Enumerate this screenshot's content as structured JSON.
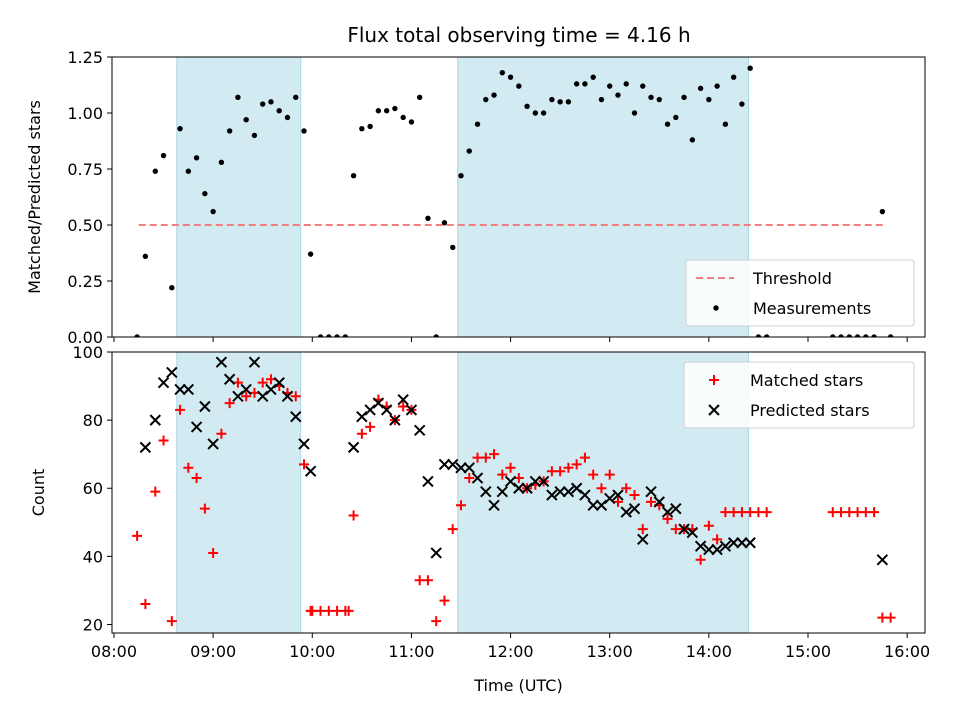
{
  "title": "Flux total observing time = 4.16 h",
  "colors": {
    "band": "#add8e6",
    "threshold": "#f08080",
    "matched": "#ff0000",
    "predicted": "#000000",
    "measurement": "#000000"
  },
  "chart_data": [
    {
      "type": "scatter",
      "ylabel": "Matched/Predicted stars",
      "ylim": [
        0,
        1.25
      ],
      "yticks": [
        "0.00",
        "0.25",
        "0.50",
        "0.75",
        "1.00",
        "1.25"
      ],
      "xlim_hours": [
        7.98,
        16.18
      ],
      "observing_windows": [
        [
          "08:38",
          "09:53"
        ],
        [
          "11:28",
          "14:24"
        ]
      ],
      "threshold": {
        "value": 0.5,
        "from": "08:15",
        "to": "15:47"
      },
      "legend": {
        "position": "lower-right",
        "entries": [
          "Threshold",
          "Measurements"
        ]
      },
      "series": [
        {
          "name": "Measurements",
          "x": [
            "08:14",
            "08:19",
            "08:25",
            "08:30",
            "08:35",
            "08:40",
            "08:45",
            "08:50",
            "08:55",
            "09:00",
            "09:05",
            "09:10",
            "09:15",
            "09:20",
            "09:25",
            "09:30",
            "09:35",
            "09:40",
            "09:45",
            "09:50",
            "09:55",
            "09:59",
            "10:05",
            "10:10",
            "10:15",
            "10:20",
            "10:25",
            "10:30",
            "10:35",
            "10:40",
            "10:45",
            "10:50",
            "10:55",
            "11:00",
            "11:05",
            "11:10",
            "11:15",
            "11:20",
            "11:25",
            "11:30",
            "11:35",
            "11:40",
            "11:45",
            "11:50",
            "11:55",
            "12:00",
            "12:05",
            "12:10",
            "12:15",
            "12:20",
            "12:25",
            "12:30",
            "12:35",
            "12:40",
            "12:45",
            "12:50",
            "12:55",
            "13:00",
            "13:05",
            "13:10",
            "13:15",
            "13:20",
            "13:25",
            "13:30",
            "13:35",
            "13:40",
            "13:45",
            "13:50",
            "13:55",
            "14:00",
            "14:05",
            "14:10",
            "14:15",
            "14:20",
            "14:25",
            "14:30",
            "14:35",
            "15:15",
            "15:20",
            "15:25",
            "15:30",
            "15:35",
            "15:40",
            "15:45",
            "15:50"
          ],
          "y": [
            0.0,
            0.36,
            0.74,
            0.81,
            0.22,
            0.93,
            0.74,
            0.8,
            0.64,
            0.56,
            0.78,
            0.92,
            1.07,
            0.97,
            0.9,
            1.04,
            1.05,
            1.01,
            0.98,
            1.07,
            0.92,
            0.37,
            0.0,
            0.0,
            0.0,
            0.0,
            0.72,
            0.93,
            0.94,
            1.01,
            1.01,
            1.02,
            0.98,
            0.96,
            1.07,
            0.53,
            0.0,
            0.51,
            0.4,
            0.72,
            0.83,
            0.95,
            1.06,
            1.08,
            1.18,
            1.16,
            1.12,
            1.03,
            1.0,
            1.0,
            1.06,
            1.05,
            1.05,
            1.13,
            1.13,
            1.16,
            1.06,
            1.12,
            1.08,
            1.13,
            1.0,
            1.12,
            1.07,
            1.06,
            0.95,
            0.98,
            1.07,
            0.88,
            1.11,
            1.06,
            1.12,
            0.95,
            1.16,
            1.04,
            1.2,
            0.0,
            0.0,
            0.0,
            0.0,
            0.0,
            0.0,
            0.0,
            0.0,
            0.56,
            0.0
          ]
        }
      ]
    },
    {
      "type": "scatter",
      "xlabel": "Time (UTC)",
      "ylabel": "Count",
      "ylim": [
        17.5,
        100
      ],
      "yticks": [
        "20",
        "40",
        "60",
        "80",
        "100"
      ],
      "xlim_hours": [
        7.98,
        16.18
      ],
      "xticks": [
        "08:00",
        "09:00",
        "10:00",
        "11:00",
        "12:00",
        "13:00",
        "14:00",
        "15:00",
        "16:00"
      ],
      "observing_windows": [
        [
          "08:38",
          "09:53"
        ],
        [
          "11:28",
          "14:24"
        ]
      ],
      "legend": {
        "position": "top-right",
        "entries": [
          "Matched stars",
          "Predicted stars"
        ]
      },
      "series": [
        {
          "name": "Matched stars",
          "x": [
            "08:14",
            "08:19",
            "08:25",
            "08:30",
            "08:35",
            "08:40",
            "08:45",
            "08:50",
            "08:55",
            "09:00",
            "09:05",
            "09:10",
            "09:15",
            "09:20",
            "09:25",
            "09:30",
            "09:35",
            "09:40",
            "09:45",
            "09:50",
            "09:55",
            "09:59",
            "10:00",
            "10:05",
            "10:10",
            "10:15",
            "10:20",
            "10:22",
            "10:25",
            "10:30",
            "10:35",
            "10:40",
            "10:45",
            "10:50",
            "10:55",
            "11:00",
            "11:05",
            "11:10",
            "11:15",
            "11:20",
            "11:25",
            "11:30",
            "11:35",
            "11:40",
            "11:45",
            "11:50",
            "11:55",
            "12:00",
            "12:05",
            "12:10",
            "12:15",
            "12:20",
            "12:25",
            "12:30",
            "12:35",
            "12:40",
            "12:45",
            "12:50",
            "12:55",
            "13:00",
            "13:05",
            "13:10",
            "13:15",
            "13:20",
            "13:25",
            "13:30",
            "13:35",
            "13:40",
            "13:45",
            "13:50",
            "13:55",
            "14:00",
            "14:05",
            "14:10",
            "14:15",
            "14:20",
            "14:25",
            "14:30",
            "14:35",
            "15:15",
            "15:20",
            "15:25",
            "15:30",
            "15:35",
            "15:40",
            "15:45",
            "15:50"
          ],
          "y": [
            46,
            26,
            59,
            74,
            21,
            83,
            66,
            63,
            54,
            41,
            76,
            85,
            91,
            87,
            88,
            91,
            92,
            90,
            88,
            87,
            67,
            24,
            24,
            24,
            24,
            24,
            24,
            24,
            52,
            76,
            78,
            86,
            84,
            80,
            84,
            83,
            33,
            33,
            21,
            27,
            48,
            55,
            63,
            69,
            69,
            70,
            64,
            66,
            63,
            60,
            61,
            62,
            65,
            65,
            66,
            67,
            69,
            64,
            60,
            64,
            56,
            60,
            58,
            48,
            56,
            55,
            51,
            48,
            48,
            48,
            39,
            49,
            45,
            53,
            53,
            53,
            53,
            53,
            53,
            53,
            53,
            53,
            53,
            53,
            53,
            22,
            22
          ]
        },
        {
          "name": "Predicted stars",
          "x": [
            "08:19",
            "08:25",
            "08:30",
            "08:35",
            "08:40",
            "08:45",
            "08:50",
            "08:55",
            "09:00",
            "09:05",
            "09:10",
            "09:15",
            "09:20",
            "09:25",
            "09:30",
            "09:35",
            "09:40",
            "09:45",
            "09:50",
            "09:55",
            "09:59",
            "10:25",
            "10:30",
            "10:35",
            "10:40",
            "10:45",
            "10:50",
            "10:55",
            "11:00",
            "11:05",
            "11:10",
            "11:15",
            "11:20",
            "11:25",
            "11:30",
            "11:35",
            "11:40",
            "11:45",
            "11:50",
            "11:55",
            "12:00",
            "12:05",
            "12:10",
            "12:15",
            "12:20",
            "12:25",
            "12:30",
            "12:35",
            "12:40",
            "12:45",
            "12:50",
            "12:55",
            "13:00",
            "13:05",
            "13:10",
            "13:15",
            "13:20",
            "13:25",
            "13:30",
            "13:35",
            "13:40",
            "13:45",
            "13:50",
            "13:55",
            "14:00",
            "14:05",
            "14:10",
            "14:15",
            "14:20",
            "14:25",
            "15:45"
          ],
          "y": [
            72,
            80,
            91,
            94,
            89,
            89,
            78,
            84,
            73,
            97,
            92,
            87,
            89,
            97,
            87,
            89,
            91,
            87,
            81,
            73,
            65,
            72,
            81,
            83,
            85,
            83,
            80,
            86,
            83,
            77,
            62,
            41,
            67,
            67,
            66,
            66,
            63,
            59,
            55,
            59,
            62,
            60,
            60,
            62,
            62,
            58,
            59,
            59,
            60,
            58,
            55,
            55,
            57,
            58,
            53,
            54,
            45,
            59,
            56,
            53,
            54,
            48,
            47,
            43,
            42,
            42,
            43,
            44,
            44,
            44,
            39
          ]
        }
      ]
    }
  ]
}
